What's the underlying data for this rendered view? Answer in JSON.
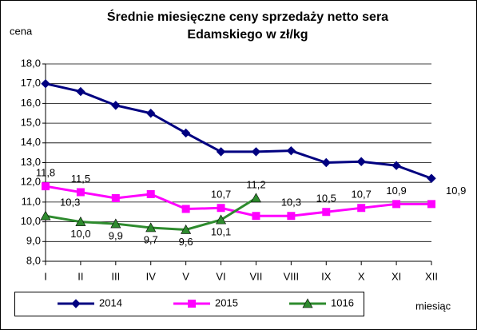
{
  "chart_data": {
    "type": "line",
    "title": [
      "Średnie miesięczne ceny sprzedaży netto sera",
      "Edamskiego w zł/kg"
    ],
    "y_label": "cena",
    "x_label": "miesiąc",
    "categories": [
      "I",
      "II",
      "III",
      "IV",
      "V",
      "VI",
      "VII",
      "VIII",
      "IX",
      "X",
      "XI",
      "XII"
    ],
    "series": [
      {
        "name": "2014",
        "color": "#000080",
        "marker": "diamond",
        "values": [
          17.0,
          16.6,
          15.9,
          15.5,
          14.5,
          13.55,
          13.55,
          13.6,
          13.0,
          13.05,
          12.85,
          12.2
        ]
      },
      {
        "name": "2015",
        "color": "#ff00ff",
        "marker": "square",
        "values": [
          11.8,
          11.5,
          11.2,
          11.4,
          10.65,
          10.7,
          10.3,
          10.3,
          10.5,
          10.7,
          10.9,
          10.9
        ],
        "value_labels": [
          "11,8",
          "11,5",
          null,
          null,
          null,
          "10,7",
          null,
          "10,3",
          "10,5",
          "10,7",
          "10,9",
          "10,9"
        ]
      },
      {
        "name": "1016",
        "color": "#2e8b2e",
        "marker": "triangle",
        "values": [
          10.3,
          10.0,
          9.9,
          9.7,
          9.6,
          10.1,
          11.2,
          null,
          null,
          null,
          null,
          null
        ],
        "value_labels": [
          "10,3",
          "10,0",
          "9,9",
          "9,7",
          "9,6",
          "10,1",
          "11,2",
          null,
          null,
          null,
          null,
          null
        ]
      }
    ],
    "ylim": [
      8.0,
      18.0
    ],
    "yticks": [
      {
        "value": 8,
        "label": "8,0"
      },
      {
        "value": 9,
        "label": "9,0"
      },
      {
        "value": 10,
        "label": "10,0"
      },
      {
        "value": 11,
        "label": "11,0"
      },
      {
        "value": 12,
        "label": "12,0"
      },
      {
        "value": 13,
        "label": "13,0"
      },
      {
        "value": 14,
        "label": "14,0"
      },
      {
        "value": 15,
        "label": "15,0"
      },
      {
        "value": 16,
        "label": "16,0"
      },
      {
        "value": 17,
        "label": "17,0"
      },
      {
        "value": 18,
        "label": "18,0"
      }
    ],
    "grid": true
  }
}
